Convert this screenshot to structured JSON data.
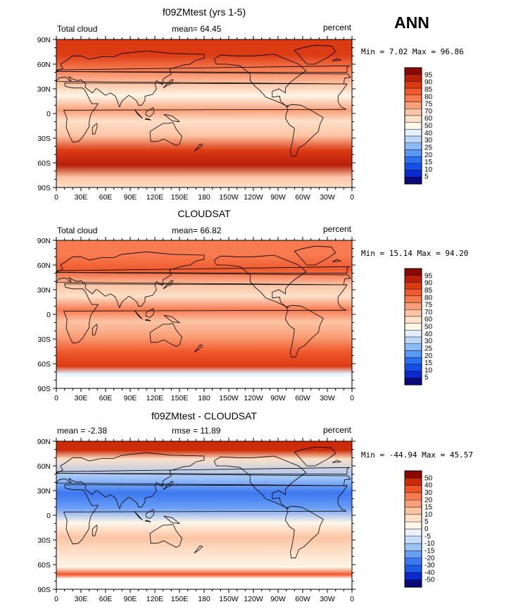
{
  "season": "ANN",
  "lon_labels": [
    "0",
    "30E",
    "60E",
    "90E",
    "120E",
    "150E",
    "180",
    "150W",
    "120W",
    "90W",
    "60W",
    "30W",
    "0"
  ],
  "lat_labels": [
    "90N",
    "60N",
    "30N",
    "0",
    "30S",
    "60S",
    "90S"
  ],
  "colors": {
    "abs": [
      "#0a0a7a",
      "#0a2ad0",
      "#1450e8",
      "#2a70f0",
      "#5a98f5",
      "#8cb9f8",
      "#bcd6fb",
      "#e4effd",
      "#fff6e8",
      "#fde0c8",
      "#fcc4a4",
      "#fa9f78",
      "#f77a50",
      "#f05a2e",
      "#dc3a12",
      "#b8200a",
      "#8a0a00"
    ],
    "diff": [
      "#0a0a7a",
      "#0a2ad0",
      "#1e5ae8",
      "#3c78f0",
      "#6a9ef5",
      "#9cc2f8",
      "#c6dcfb",
      "#e8f1fd",
      "#fff6e8",
      "#fde0c8",
      "#fcc4a4",
      "#fa9f78",
      "#f77a50",
      "#ef5528",
      "#cc2c08",
      "#8a0a00"
    ]
  },
  "panels": [
    {
      "title": "f09ZMtest (yrs 1-5)",
      "left_label": "Total cloud",
      "center_label": "mean=  64.45",
      "right_label": "percent",
      "minmax": "Min =   7.02 Max =  96.86",
      "colorbar_labels": [
        "95",
        "90",
        "85",
        "80",
        "75",
        "70",
        "60",
        "50",
        "40",
        "30",
        "25",
        "20",
        "15",
        "10",
        "5"
      ],
      "palette": "abs",
      "field": "model"
    },
    {
      "title": "CLOUDSAT",
      "left_label": "Total cloud",
      "center_label": "mean=  66.82",
      "right_label": "percent",
      "minmax": "Min =  15.14 Max =  94.20",
      "colorbar_labels": [
        "95",
        "90",
        "85",
        "80",
        "75",
        "70",
        "60",
        "50",
        "40",
        "30",
        "25",
        "20",
        "15",
        "10",
        "5"
      ],
      "palette": "abs",
      "field": "obs"
    },
    {
      "title": "f09ZMtest - CLOUDSAT",
      "left_label": "mean =  -2.38",
      "center_label": "rmse =  11.89",
      "right_label": "percent",
      "minmax": "Min = -44.94 Max =  45.57",
      "colorbar_labels": [
        "50",
        "40",
        "30",
        "20",
        "15",
        "10",
        "5",
        "0",
        "-5",
        "-10",
        "-15",
        "-20",
        "-30",
        "-40",
        "-50"
      ],
      "palette": "diff",
      "field": "diff"
    }
  ]
}
